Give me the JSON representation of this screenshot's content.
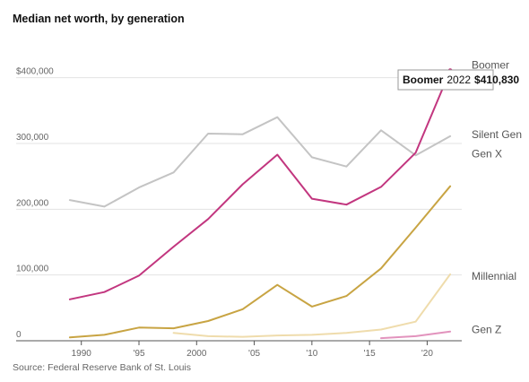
{
  "title": "Median net worth, by generation",
  "source": "Source: Federal Reserve Bank of St. Louis",
  "chart_data": {
    "type": "line",
    "title": "Median net worth, by generation",
    "xlabel": "",
    "ylabel": "",
    "xlim": [
      1988,
      2023
    ],
    "ylim": [
      0,
      420000
    ],
    "y_ticks": [
      {
        "value": 0,
        "label": "0"
      },
      {
        "value": 100000,
        "label": "100,000"
      },
      {
        "value": 200000,
        "label": "200,000"
      },
      {
        "value": 300000,
        "label": "300,000"
      },
      {
        "value": 400000,
        "label": "$400,000"
      }
    ],
    "x_ticks": [
      {
        "value": 1990,
        "label": "1990"
      },
      {
        "value": 1995,
        "label": "'95"
      },
      {
        "value": 2000,
        "label": "2000"
      },
      {
        "value": 2005,
        "label": "'05"
      },
      {
        "value": 2010,
        "label": "'10"
      },
      {
        "value": 2015,
        "label": "'15"
      },
      {
        "value": 2020,
        "label": "'20"
      }
    ],
    "grid": true,
    "legend": "direct labels at right",
    "series": [
      {
        "name": "Silent Gen",
        "color": "#c4c4c4",
        "x": [
          1989,
          1992,
          1995,
          1998,
          2001,
          2004,
          2007,
          2010,
          2013,
          2016,
          2019,
          2022
        ],
        "y": [
          214000,
          204000,
          233000,
          256000,
          315000,
          314000,
          340000,
          279000,
          265000,
          320000,
          282000,
          311000
        ]
      },
      {
        "name": "Boomer",
        "color": "#c2367f",
        "x": [
          1989,
          1992,
          1995,
          1998,
          2001,
          2004,
          2007,
          2010,
          2013,
          2016,
          2019,
          2022
        ],
        "y": [
          63000,
          74000,
          99000,
          143000,
          185000,
          238000,
          283000,
          216000,
          207000,
          234000,
          286000,
          410830
        ]
      },
      {
        "name": "Gen X",
        "color": "#c8a443",
        "x": [
          1989,
          1992,
          1995,
          1998,
          2001,
          2004,
          2007,
          2010,
          2013,
          2016,
          2019,
          2022
        ],
        "y": [
          5000,
          9000,
          20000,
          19000,
          30000,
          48000,
          85000,
          52000,
          68000,
          110000,
          172000,
          235000
        ]
      },
      {
        "name": "Millennial",
        "color": "#efdcac",
        "x": [
          1998,
          2001,
          2004,
          2007,
          2010,
          2013,
          2016,
          2019,
          2022
        ],
        "y": [
          12000,
          7000,
          6000,
          8000,
          9000,
          12000,
          17000,
          29000,
          101000
        ]
      },
      {
        "name": "Gen Z",
        "color": "#e293bd",
        "x": [
          2016,
          2019,
          2022
        ],
        "y": [
          4000,
          7000,
          14000
        ]
      }
    ],
    "highlight": {
      "series": "Boomer",
      "year": "2022",
      "value": "$410,830",
      "x": 2022,
      "y": 410830
    }
  }
}
